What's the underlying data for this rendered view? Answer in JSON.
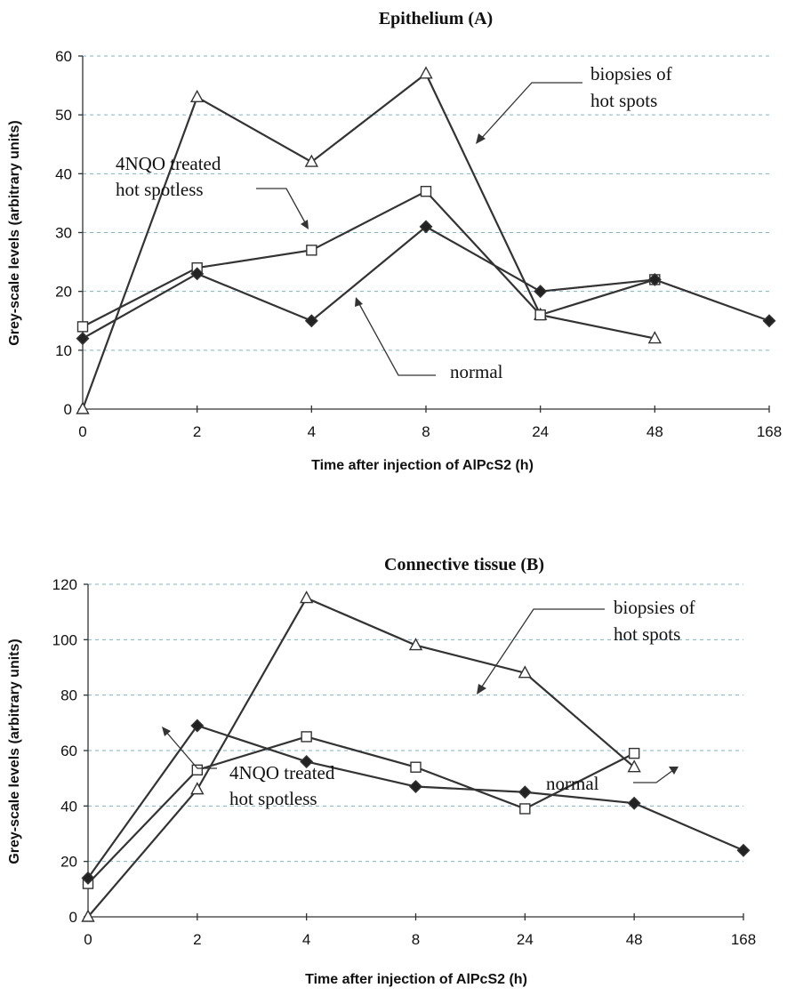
{
  "chart_data": [
    {
      "type": "line",
      "title": "Epithelium (A)",
      "xlabel": "Time after injection of AlPcS2 (h)",
      "ylabel": "Grey-scale levels (arbitrary units)",
      "categories": [
        "0",
        "2",
        "4",
        "8",
        "24",
        "48",
        "168"
      ],
      "ylim": [
        0,
        60
      ],
      "yticks": [
        0,
        10,
        20,
        30,
        40,
        50,
        60
      ],
      "grid": true,
      "series": [
        {
          "name": "biopsies of hot spots",
          "marker": "triangle",
          "values": [
            0,
            53,
            42,
            57,
            16,
            12,
            null
          ]
        },
        {
          "name": "4NQO treated hot spotless",
          "marker": "square",
          "values": [
            14,
            24,
            27,
            37,
            16,
            22,
            null
          ]
        },
        {
          "name": "normal",
          "marker": "diamond",
          "values": [
            12,
            23,
            15,
            31,
            20,
            22,
            15
          ]
        }
      ],
      "annotations": [
        {
          "lines": [
            "biopsies of",
            "hot spots"
          ],
          "series": "biopsies of hot spots"
        },
        {
          "lines": [
            "4NQO treated",
            "hot spotless"
          ],
          "series": "4NQO treated hot spotless"
        },
        {
          "lines": [
            "normal"
          ],
          "series": "normal"
        }
      ]
    },
    {
      "type": "line",
      "title": "Connective tissue (B)",
      "xlabel": "Time after injection of AlPcS2 (h)",
      "ylabel": "Grey-scale levels (arbitrary units)",
      "categories": [
        "0",
        "2",
        "4",
        "8",
        "24",
        "48",
        "168"
      ],
      "ylim": [
        0,
        120
      ],
      "yticks": [
        0,
        20,
        40,
        60,
        80,
        100,
        120
      ],
      "grid": true,
      "series": [
        {
          "name": "biopsies of hot spots",
          "marker": "triangle",
          "values": [
            0,
            46,
            115,
            98,
            88,
            54,
            null
          ]
        },
        {
          "name": "4NQO treated hot spotless",
          "marker": "square",
          "values": [
            12,
            53,
            65,
            54,
            39,
            59,
            null
          ]
        },
        {
          "name": "normal",
          "marker": "diamond",
          "values": [
            14,
            69,
            56,
            47,
            45,
            41,
            24
          ]
        }
      ],
      "annotations": [
        {
          "lines": [
            "biopsies of",
            "hot spots"
          ],
          "series": "biopsies of hot spots"
        },
        {
          "lines": [
            "4NQO treated",
            "hot spotless"
          ],
          "series": "4NQO treated hot spotless"
        },
        {
          "lines": [
            "normal"
          ],
          "series": "normal"
        }
      ]
    }
  ]
}
